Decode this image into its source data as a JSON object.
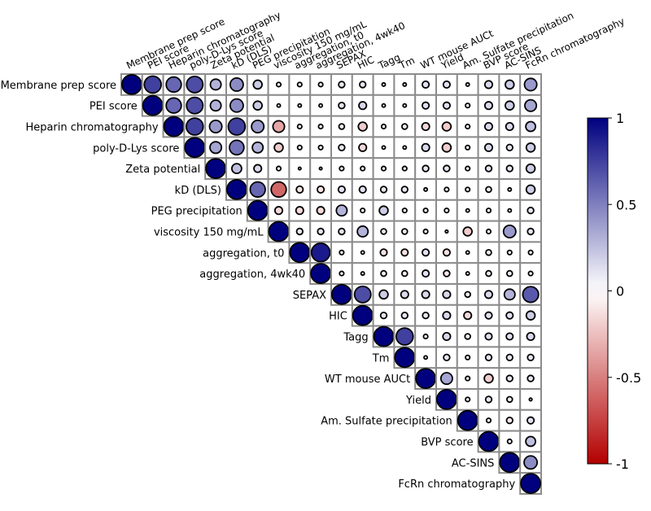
{
  "chart_data": {
    "type": "heatmap",
    "subtype": "upper-triangular correlation circle plot",
    "variables": [
      "Membrane prep score",
      "PEI score",
      "Heparin chromatography",
      "poly-D-Lys score",
      "Zeta potential",
      "kD (DLS)",
      "PEG precipitation",
      "viscosity 150 mg/mL",
      "aggregation, t0",
      "aggregation, 4wk40",
      "SEPAX",
      "HIC",
      "Tagg",
      "Tm",
      "WT mouse AUCt",
      "Yield",
      "Am. Sulfate precipitation",
      "BVP score",
      "AC-SINS",
      "FcRn chromatography"
    ],
    "matrix": [
      [
        1.0,
        0.75,
        0.6,
        0.7,
        0.3,
        0.45,
        0.2,
        0.05,
        0.05,
        0.05,
        0.1,
        0.1,
        0.03,
        0.03,
        0.12,
        0.12,
        0.03,
        0.15,
        0.2,
        0.4
      ],
      [
        null,
        1.0,
        0.6,
        0.7,
        0.3,
        0.45,
        0.2,
        0.03,
        0.03,
        0.03,
        0.1,
        0.15,
        0.03,
        0.03,
        0.12,
        0.12,
        0.05,
        0.15,
        0.2,
        0.35
      ],
      [
        null,
        null,
        1.0,
        0.75,
        0.4,
        0.75,
        0.4,
        -0.35,
        0.05,
        0.05,
        0.08,
        -0.2,
        0.05,
        0.08,
        -0.15,
        -0.2,
        0.05,
        0.15,
        0.15,
        0.25
      ],
      [
        null,
        null,
        null,
        1.0,
        0.35,
        0.55,
        0.3,
        -0.2,
        0.05,
        0.05,
        0.1,
        -0.15,
        0.03,
        0.03,
        0.15,
        -0.2,
        0.05,
        0.15,
        0.1,
        0.2
      ],
      [
        null,
        null,
        null,
        null,
        1.0,
        0.25,
        0.15,
        0.05,
        0.0,
        0.0,
        0.05,
        0.05,
        0.05,
        0.05,
        0.1,
        0.1,
        0.05,
        0.1,
        0.1,
        0.2
      ],
      [
        null,
        null,
        null,
        null,
        null,
        1.0,
        0.6,
        -0.6,
        -0.12,
        -0.12,
        0.12,
        0.12,
        0.1,
        0.1,
        0.03,
        0.05,
        0.05,
        0.08,
        0.03,
        0.2
      ],
      [
        null,
        null,
        null,
        null,
        null,
        null,
        1.0,
        -0.15,
        -0.15,
        -0.15,
        0.3,
        0.05,
        0.2,
        0.05,
        0.05,
        0.05,
        0.03,
        0.05,
        0.03,
        0.1
      ],
      [
        null,
        null,
        null,
        null,
        null,
        null,
        null,
        1.0,
        0.1,
        0.1,
        0.1,
        0.3,
        0.08,
        0.08,
        0.05,
        -0.02,
        -0.2,
        0.05,
        0.4,
        0.1
      ],
      [
        null,
        null,
        null,
        null,
        null,
        null,
        null,
        null,
        1.0,
        0.9,
        0.05,
        0.03,
        -0.12,
        -0.12,
        0.12,
        -0.12,
        0.03,
        0.08,
        0.05,
        0.05
      ],
      [
        null,
        null,
        null,
        null,
        null,
        null,
        null,
        null,
        null,
        1.0,
        0.05,
        0.03,
        -0.08,
        -0.08,
        0.12,
        -0.1,
        0.03,
        0.08,
        0.08,
        0.05
      ],
      [
        null,
        null,
        null,
        null,
        null,
        null,
        null,
        null,
        null,
        null,
        1.0,
        0.7,
        0.2,
        0.15,
        0.15,
        0.15,
        0.08,
        0.15,
        0.3,
        0.65
      ],
      [
        null,
        null,
        null,
        null,
        null,
        null,
        null,
        null,
        null,
        null,
        null,
        1.0,
        0.1,
        0.1,
        0.1,
        0.15,
        -0.15,
        0.12,
        0.12,
        0.2
      ],
      [
        null,
        null,
        null,
        null,
        null,
        null,
        null,
        null,
        null,
        null,
        null,
        null,
        1.0,
        0.75,
        0.05,
        0.15,
        0.08,
        0.12,
        0.12,
        0.15
      ],
      [
        null,
        null,
        null,
        null,
        null,
        null,
        null,
        null,
        null,
        null,
        null,
        null,
        null,
        1.0,
        0.03,
        0.1,
        0.05,
        0.1,
        0.1,
        0.1
      ],
      [
        null,
        null,
        null,
        null,
        null,
        null,
        null,
        null,
        null,
        null,
        null,
        null,
        null,
        null,
        1.0,
        0.35,
        0.05,
        -0.2,
        0.1,
        0.1
      ],
      [
        null,
        null,
        null,
        null,
        null,
        null,
        null,
        null,
        null,
        null,
        null,
        null,
        null,
        null,
        null,
        1.0,
        0.05,
        0.1,
        0.08,
        0.02
      ],
      [
        null,
        null,
        null,
        null,
        null,
        null,
        null,
        null,
        null,
        null,
        null,
        null,
        null,
        null,
        null,
        null,
        1.0,
        0.05,
        -0.1,
        0.12
      ],
      [
        null,
        null,
        null,
        null,
        null,
        null,
        null,
        null,
        null,
        null,
        null,
        null,
        null,
        null,
        null,
        null,
        null,
        1.0,
        0.05,
        0.25
      ],
      [
        null,
        null,
        null,
        null,
        null,
        null,
        null,
        null,
        null,
        null,
        null,
        null,
        null,
        null,
        null,
        null,
        null,
        null,
        1.0,
        0.45
      ],
      [
        null,
        null,
        null,
        null,
        null,
        null,
        null,
        null,
        null,
        null,
        null,
        null,
        null,
        null,
        null,
        null,
        null,
        null,
        null,
        1.0
      ]
    ],
    "colorbar": {
      "range": [
        -1,
        1
      ],
      "ticks": [
        1,
        0.5,
        0,
        -0.5,
        -1
      ],
      "tick_labels": [
        "1",
        "0.5",
        "0",
        "-0.5",
        "-1"
      ],
      "colormap": "seismic_r",
      "low_color": "#b30000",
      "mid_color": "#ffffff",
      "high_color": "#00007f"
    },
    "grid": true,
    "title": "",
    "xlabel": "",
    "ylabel": ""
  }
}
